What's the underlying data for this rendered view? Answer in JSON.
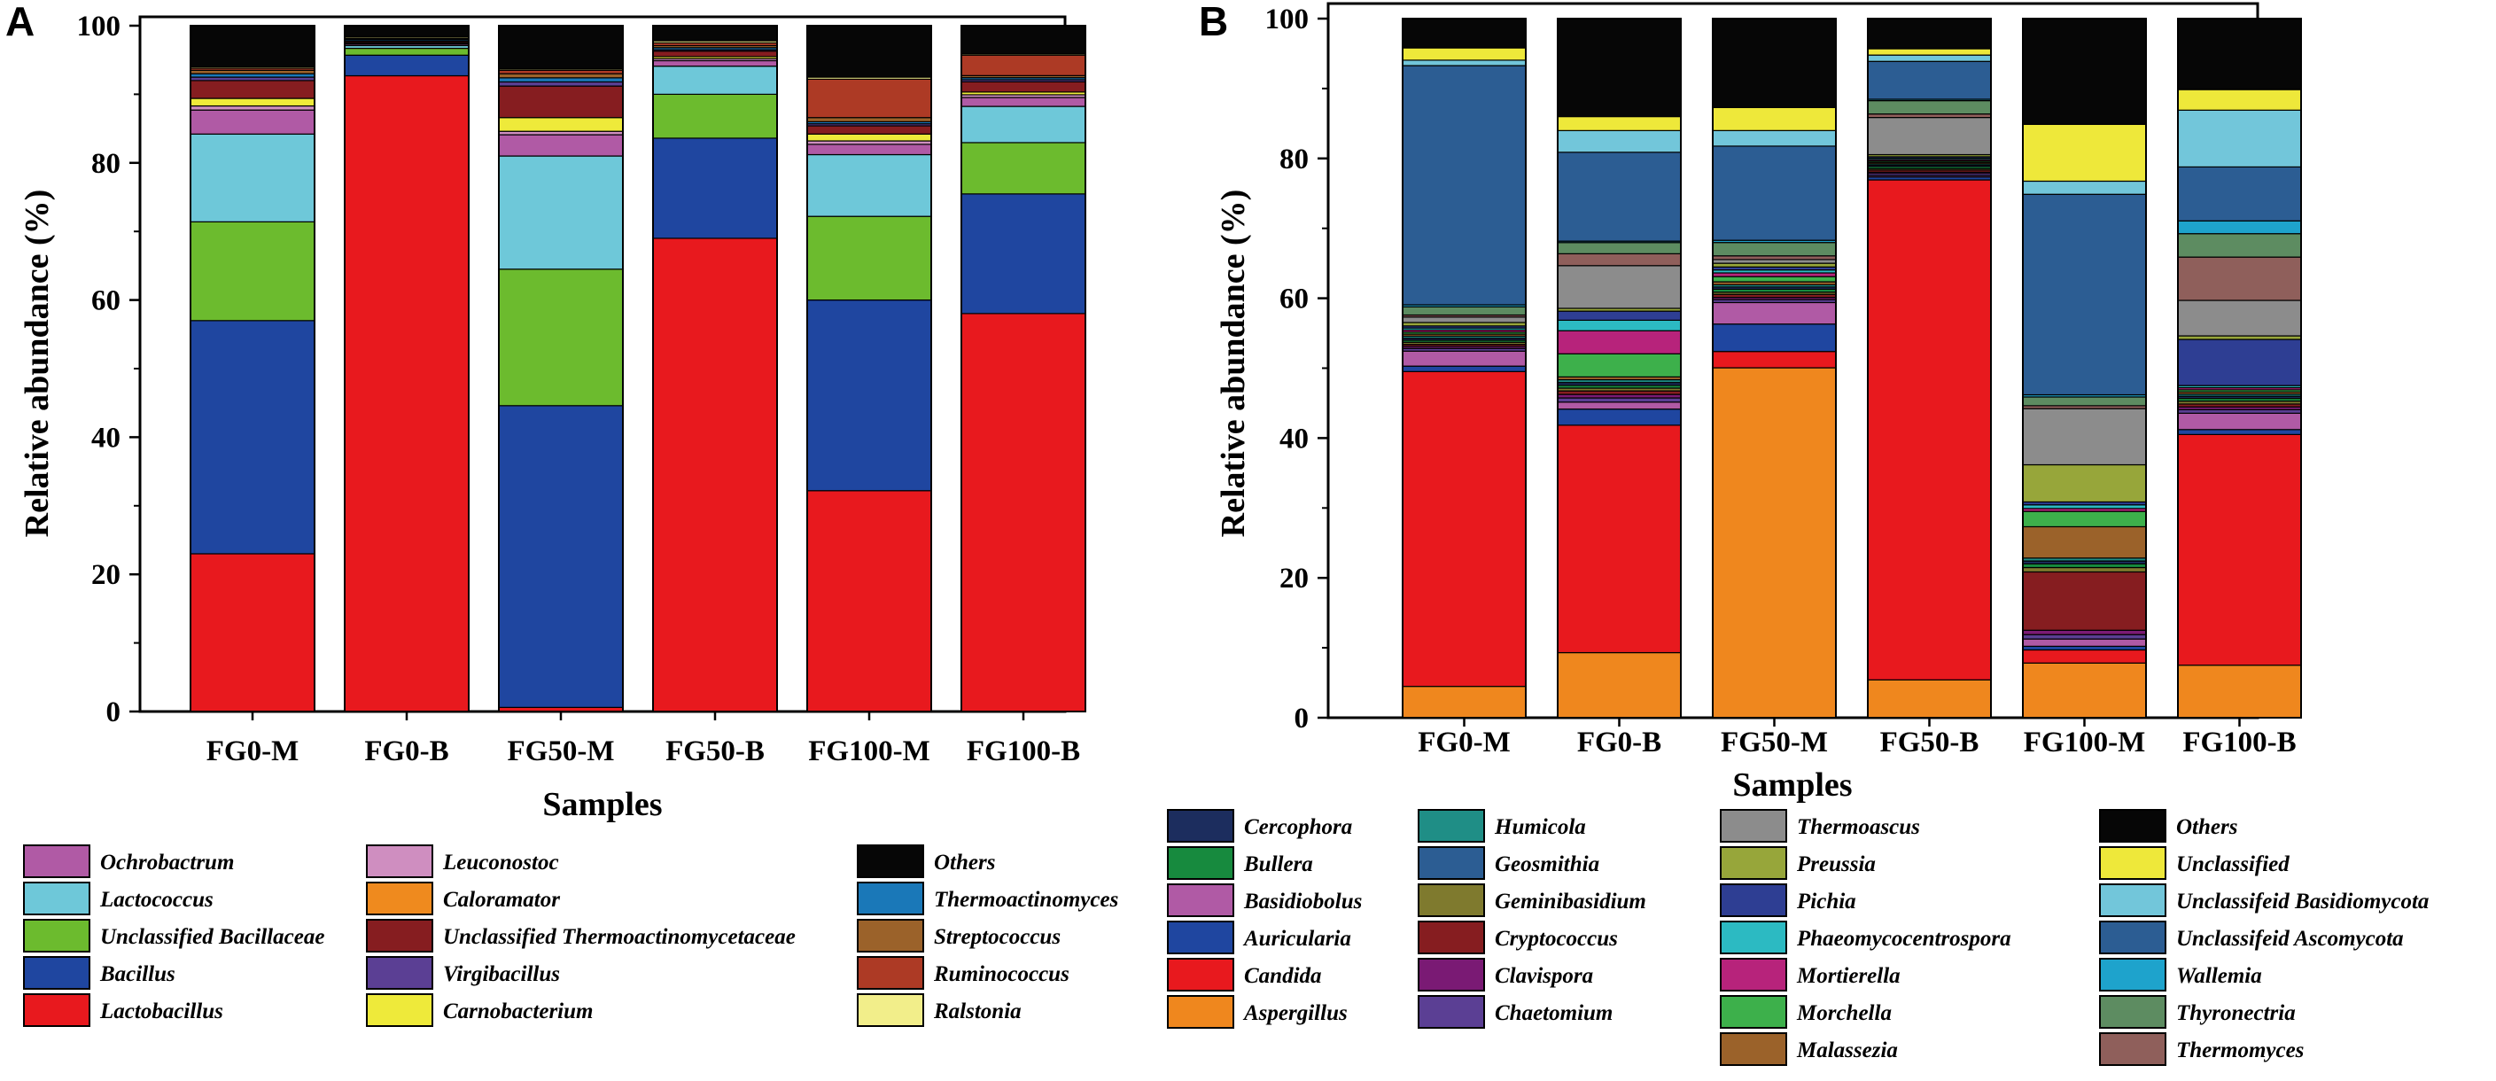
{
  "figure": {
    "panel_a_label": "A",
    "panel_b_label": "B"
  },
  "chart_data": [
    {
      "id": "A",
      "type": "stacked-bar",
      "title": "",
      "xlabel": "Samples",
      "ylabel": "Relative abundance (%)",
      "ylim": [
        0,
        100
      ],
      "yticks": [
        0,
        20,
        40,
        60,
        80,
        100
      ],
      "categories": [
        "FG0-M",
        "FG0-B",
        "FG50-M",
        "FG50-B",
        "FG100-M",
        "FG100-B"
      ],
      "series": [
        {
          "name": "Lactobacillus",
          "color": "#e8191e",
          "values": [
            23.0,
            92.7,
            0.6,
            69.0,
            32.2,
            58.2
          ]
        },
        {
          "name": "Bacillus",
          "color": "#1f46a0",
          "values": [
            34.0,
            3.0,
            44.0,
            14.6,
            27.8,
            17.5
          ]
        },
        {
          "name": "Unclassified Bacillaceae",
          "color": "#6cbb2e",
          "values": [
            14.4,
            1.0,
            19.9,
            6.4,
            12.2,
            7.5
          ]
        },
        {
          "name": "Lactococcus",
          "color": "#6ec8d9",
          "values": [
            12.8,
            0.4,
            16.5,
            4.1,
            9.0,
            5.3
          ]
        },
        {
          "name": "Caloramator",
          "color": "#ef8a1e",
          "values": [
            0,
            0,
            0,
            0,
            0,
            0
          ]
        },
        {
          "name": "Ochrobactrum",
          "color": "#b05aa5",
          "values": [
            3.5,
            0.2,
            3.1,
            0.8,
            1.5,
            1.3
          ]
        },
        {
          "name": "Leuconostoc",
          "color": "#cf8ec0",
          "values": [
            0.6,
            0.1,
            0.5,
            0.3,
            0.5,
            0.4
          ]
        },
        {
          "name": "Carnobacterium",
          "color": "#eeea3a",
          "values": [
            1.1,
            0.1,
            2.0,
            0.3,
            1.0,
            0.4
          ]
        },
        {
          "name": "Unclassified Thermoactinomycetaceae",
          "color": "#861d20",
          "values": [
            2.6,
            0.2,
            4.6,
            0.8,
            1.2,
            1.5
          ]
        },
        {
          "name": "Virgibacillus",
          "color": "#5b3f94",
          "values": [
            0.5,
            0.1,
            0.6,
            0.2,
            0.3,
            0.3
          ]
        },
        {
          "name": "Thermoactinomyces",
          "color": "#1a78b8",
          "values": [
            0.5,
            0.2,
            0.6,
            0.3,
            0.3,
            0.3
          ]
        },
        {
          "name": "Streptococcus",
          "color": "#9b622a",
          "values": [
            0.5,
            0.1,
            0.6,
            0.3,
            0.6,
            0.3
          ]
        },
        {
          "name": "Ruminococcus",
          "color": "#ad3a25",
          "values": [
            0.3,
            0.1,
            0.5,
            0.4,
            5.6,
            3.0
          ]
        },
        {
          "name": "Ralstonia",
          "color": "#f2ee8a",
          "values": [
            0.2,
            0.2,
            0.2,
            0.3,
            0.3,
            0.2
          ]
        },
        {
          "name": "Others",
          "color": "#060606",
          "values": [
            6.0,
            1.6,
            6.3,
            2.2,
            7.5,
            4.1
          ]
        }
      ]
    },
    {
      "id": "B",
      "type": "stacked-bar",
      "title": "",
      "xlabel": "Samples",
      "ylabel": "Relative abundance (%)",
      "ylim": [
        0,
        100
      ],
      "yticks": [
        0,
        20,
        40,
        60,
        80,
        100
      ],
      "categories": [
        "FG0-M",
        "FG0-B",
        "FG50-M",
        "FG50-B",
        "FG100-M",
        "FG100-B"
      ],
      "series": [
        {
          "name": "Aspergillus",
          "color": "#ef871e",
          "values": [
            4.6,
            9.3,
            47.2,
            5.4,
            7.5,
            7.4
          ]
        },
        {
          "name": "Candida",
          "color": "#e8191e",
          "values": [
            46.2,
            32.5,
            2.2,
            71.3,
            1.8,
            32.5
          ]
        },
        {
          "name": "Auricularia",
          "color": "#1f46a0",
          "values": [
            0.8,
            2.3,
            3.7,
            0.4,
            0.5,
            0.7
          ]
        },
        {
          "name": "Basidiobolus",
          "color": "#b05aa5",
          "values": [
            2.2,
            1.0,
            2.9,
            0.2,
            1.0,
            2.3
          ]
        },
        {
          "name": "Chaetomium",
          "color": "#5b3f94",
          "values": [
            0.4,
            0.6,
            0.4,
            0.3,
            0.6,
            0.5
          ]
        },
        {
          "name": "Clavispora",
          "color": "#7a1a74",
          "values": [
            0.3,
            0.5,
            0.3,
            0.2,
            0.6,
            0.4
          ]
        },
        {
          "name": "Cryptococcus",
          "color": "#861d20",
          "values": [
            0.3,
            0.5,
            0.4,
            0.3,
            8.0,
            0.4
          ]
        },
        {
          "name": "Geminibasidium",
          "color": "#7f7a2e",
          "values": [
            0.3,
            0.4,
            0.3,
            0.2,
            0.6,
            0.4
          ]
        },
        {
          "name": "Bullera",
          "color": "#178a3e",
          "values": [
            0.3,
            0.4,
            0.4,
            0.3,
            0.5,
            0.4
          ]
        },
        {
          "name": "Cercophora",
          "color": "#1c2d5e",
          "values": [
            0.3,
            0.4,
            0.3,
            0.2,
            0.4,
            0.3
          ]
        },
        {
          "name": "Humicola",
          "color": "#1f8e86",
          "values": [
            0.3,
            0.4,
            0.3,
            0.2,
            0.4,
            0.3
          ]
        },
        {
          "name": "Malassezia",
          "color": "#9b622a",
          "values": [
            0.3,
            0.4,
            0.4,
            0.2,
            4.3,
            0.3
          ]
        },
        {
          "name": "Morchella",
          "color": "#3db04b",
          "values": [
            0.3,
            3.3,
            0.7,
            0.2,
            2.1,
            0.3
          ]
        },
        {
          "name": "Mortierella",
          "color": "#b7237b",
          "values": [
            0.3,
            3.3,
            0.5,
            0.2,
            0.4,
            0.3
          ]
        },
        {
          "name": "Phaeomycocentrospora",
          "color": "#2cbac2",
          "values": [
            0.3,
            1.5,
            0.4,
            0.2,
            0.5,
            0.3
          ]
        },
        {
          "name": "Pichia",
          "color": "#2e3e93",
          "values": [
            0.3,
            1.3,
            0.4,
            0.2,
            0.4,
            6.5
          ]
        },
        {
          "name": "Preussia",
          "color": "#97a63a",
          "values": [
            0.5,
            0.4,
            0.5,
            0.3,
            5.1,
            0.5
          ]
        },
        {
          "name": "Thermoascus",
          "color": "#8c8c8c",
          "values": [
            0.8,
            6.1,
            0.5,
            5.3,
            7.7,
            5.0
          ]
        },
        {
          "name": "Thermomyces",
          "color": "#8f5f5b",
          "values": [
            0.3,
            1.7,
            0.5,
            0.5,
            0.4,
            6.1
          ]
        },
        {
          "name": "Thyronectria",
          "color": "#5d8c61",
          "values": [
            1.2,
            1.6,
            1.8,
            1.9,
            1.2,
            3.3
          ]
        },
        {
          "name": "Wallemia",
          "color": "#1ea3cc",
          "values": [
            0.3,
            0.2,
            0.3,
            0.2,
            0.3,
            1.8
          ]
        },
        {
          "name": "Unclassifeid Ascomycota",
          "color": "#2c5d93",
          "values": [
            35.1,
            12.7,
            12.7,
            5.4,
            27.5,
            7.6
          ]
        },
        {
          "name": "Unclassifeid Basidiomycota",
          "color": "#72c6da",
          "values": [
            0.8,
            3.1,
            2.1,
            0.9,
            1.8,
            8.0
          ]
        },
        {
          "name": "Unclassified",
          "color": "#eee83a",
          "values": [
            1.8,
            2.0,
            3.1,
            0.9,
            7.8,
            2.9
          ]
        },
        {
          "name": "Others",
          "color": "#060606",
          "values": [
            4.3,
            14.0,
            12.0,
            4.3,
            14.5,
            10.0
          ]
        }
      ]
    }
  ]
}
